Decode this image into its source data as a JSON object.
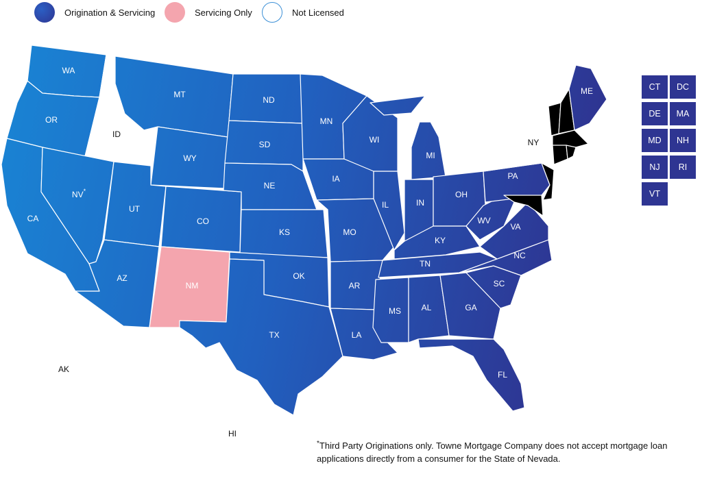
{
  "legend": {
    "items": [
      {
        "label": "Origination & Servicing",
        "color": "#2e3592",
        "gradient_from": "#1a7fd0"
      },
      {
        "label": "Servicing Only",
        "color": "#f4a5ae"
      },
      {
        "label": "Not Licensed",
        "color": "#ffffff",
        "border": "#3b8fd6"
      }
    ]
  },
  "colors": {
    "origination_west": "#1a7fd0",
    "origination_east": "#2e3592",
    "servicing_only": "#f4a5ae",
    "not_licensed": "#ffffff",
    "not_licensed_border": "#4a9ad8"
  },
  "states": {
    "WA": {
      "label": "WA",
      "status": "origination"
    },
    "OR": {
      "label": "OR",
      "status": "origination"
    },
    "CA": {
      "label": "CA",
      "status": "origination"
    },
    "ID": {
      "label": "ID",
      "status": "not_licensed"
    },
    "NV": {
      "label": "NV",
      "status": "origination",
      "note_mark": "*"
    },
    "MT": {
      "label": "MT",
      "status": "origination"
    },
    "WY": {
      "label": "WY",
      "status": "origination"
    },
    "UT": {
      "label": "UT",
      "status": "origination"
    },
    "AZ": {
      "label": "AZ",
      "status": "origination"
    },
    "CO": {
      "label": "CO",
      "status": "origination"
    },
    "NM": {
      "label": "NM",
      "status": "servicing_only"
    },
    "ND": {
      "label": "ND",
      "status": "origination"
    },
    "SD": {
      "label": "SD",
      "status": "origination"
    },
    "NE": {
      "label": "NE",
      "status": "origination"
    },
    "KS": {
      "label": "KS",
      "status": "origination"
    },
    "OK": {
      "label": "OK",
      "status": "origination"
    },
    "TX": {
      "label": "TX",
      "status": "origination"
    },
    "MN": {
      "label": "MN",
      "status": "origination"
    },
    "IA": {
      "label": "IA",
      "status": "origination"
    },
    "MO": {
      "label": "MO",
      "status": "origination"
    },
    "AR": {
      "label": "AR",
      "status": "origination"
    },
    "LA": {
      "label": "LA",
      "status": "origination"
    },
    "WI": {
      "label": "WI",
      "status": "origination"
    },
    "IL": {
      "label": "IL",
      "status": "origination"
    },
    "MI": {
      "label": "MI",
      "status": "origination"
    },
    "IN": {
      "label": "IN",
      "status": "origination"
    },
    "OH": {
      "label": "OH",
      "status": "origination"
    },
    "KY": {
      "label": "KY",
      "status": "origination"
    },
    "TN": {
      "label": "TN",
      "status": "origination"
    },
    "MS": {
      "label": "MS",
      "status": "origination"
    },
    "AL": {
      "label": "AL",
      "status": "origination"
    },
    "GA": {
      "label": "GA",
      "status": "origination"
    },
    "FL": {
      "label": "FL",
      "status": "origination"
    },
    "SC": {
      "label": "SC",
      "status": "origination"
    },
    "NC": {
      "label": "NC",
      "status": "origination"
    },
    "VA": {
      "label": "VA",
      "status": "origination"
    },
    "WV": {
      "label": "WV",
      "status": "origination"
    },
    "PA": {
      "label": "PA",
      "status": "origination"
    },
    "NY": {
      "label": "NY",
      "status": "not_licensed"
    },
    "ME": {
      "label": "ME",
      "status": "origination"
    },
    "AK": {
      "label": "AK",
      "status": "not_licensed"
    },
    "HI": {
      "label": "HI",
      "status": "not_licensed"
    }
  },
  "small_states": [
    {
      "label": "CT",
      "status": "origination"
    },
    {
      "label": "DC",
      "status": "origination"
    },
    {
      "label": "DE",
      "status": "origination"
    },
    {
      "label": "MA",
      "status": "origination"
    },
    {
      "label": "MD",
      "status": "origination"
    },
    {
      "label": "NH",
      "status": "origination"
    },
    {
      "label": "NJ",
      "status": "origination"
    },
    {
      "label": "RI",
      "status": "origination"
    },
    {
      "label": "VT",
      "status": "origination"
    }
  ],
  "footnote": {
    "mark": "*",
    "text": "Third Party Originations only. Towne Mortgage Company does not accept mortgage loan applications directly from a consumer for the State of Nevada."
  }
}
